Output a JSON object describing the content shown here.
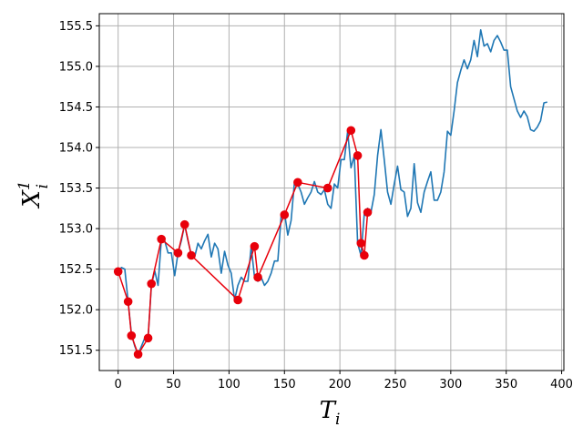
{
  "chart_data": {
    "type": "line",
    "title": "",
    "xlabel": {
      "base": "T",
      "sub": "i"
    },
    "ylabel": {
      "base": "X",
      "sub": "i",
      "sup": "1"
    },
    "xlim": [
      -17,
      402
    ],
    "ylim": [
      151.25,
      155.65
    ],
    "grid": true,
    "x_ticks": [
      0,
      50,
      100,
      150,
      200,
      250,
      300,
      350,
      400
    ],
    "x_tick_labels": [
      "0",
      "50",
      "100",
      "150",
      "200",
      "250",
      "300",
      "350",
      "400"
    ],
    "y_ticks": [
      151.5,
      152.0,
      152.5,
      153.0,
      153.5,
      154.0,
      154.5,
      155.0,
      155.5
    ],
    "y_tick_labels": [
      "151.5",
      "152.0",
      "152.5",
      "153.0",
      "153.5",
      "154.0",
      "154.5",
      "155.0",
      "155.5"
    ],
    "series": [
      {
        "style": "line",
        "color": "#1f77b4",
        "x": [
          0,
          3,
          6,
          9,
          12,
          15,
          18,
          21,
          24,
          27,
          30,
          33,
          36,
          39,
          42,
          45,
          48,
          51,
          54,
          57,
          60,
          63,
          66,
          69,
          72,
          75,
          78,
          81,
          84,
          87,
          90,
          93,
          96,
          99,
          102,
          105,
          108,
          111,
          114,
          117,
          120,
          123,
          126,
          129,
          132,
          135,
          138,
          141,
          144,
          147,
          150,
          153,
          156,
          159,
          162,
          165,
          168,
          171,
          174,
          177,
          180,
          183,
          186,
          189,
          192,
          195,
          198,
          201,
          204,
          207,
          210,
          213,
          216,
          219,
          222,
          225,
          228,
          231,
          234,
          237,
          240,
          243,
          246,
          249,
          252,
          255,
          258,
          261,
          264,
          267,
          270,
          273,
          276,
          279,
          282,
          285,
          288,
          291,
          294,
          297,
          300,
          303,
          306,
          309,
          312,
          315,
          318,
          321,
          324,
          327,
          330,
          333,
          336,
          339,
          342,
          345,
          348,
          351,
          354,
          357,
          360,
          363,
          366,
          369,
          372,
          375,
          378,
          381,
          384,
          387
        ],
        "y": [
          152.47,
          152.52,
          152.5,
          152.1,
          151.7,
          151.55,
          151.45,
          151.55,
          151.65,
          151.65,
          152.3,
          152.48,
          152.3,
          152.87,
          152.85,
          152.7,
          152.7,
          152.42,
          152.7,
          152.85,
          153.05,
          152.85,
          152.67,
          152.65,
          152.82,
          152.75,
          152.85,
          152.93,
          152.65,
          152.82,
          152.75,
          152.45,
          152.72,
          152.55,
          152.45,
          152.12,
          152.3,
          152.4,
          152.35,
          152.35,
          152.78,
          152.4,
          152.35,
          152.4,
          152.3,
          152.35,
          152.45,
          152.6,
          152.6,
          153.15,
          153.2,
          152.92,
          153.1,
          153.57,
          153.55,
          153.45,
          153.3,
          153.38,
          153.45,
          153.58,
          153.45,
          153.42,
          153.48,
          153.3,
          153.25,
          153.55,
          153.5,
          153.85,
          153.85,
          154.2,
          153.75,
          153.9,
          152.82,
          152.67,
          153.18,
          153.25,
          153.2,
          153.42,
          153.9,
          154.22,
          153.85,
          153.45,
          153.3,
          153.55,
          153.77,
          153.48,
          153.45,
          153.15,
          153.25,
          153.8,
          153.32,
          153.2,
          153.45,
          153.58,
          153.7,
          153.35,
          153.35,
          153.45,
          153.7,
          154.2,
          154.15,
          154.45,
          154.8,
          154.95,
          155.08,
          154.97,
          155.08,
          155.32,
          155.12,
          155.45,
          155.25,
          155.28,
          155.18,
          155.32,
          155.38,
          155.3,
          155.2,
          155.2,
          154.75,
          154.6,
          154.45,
          154.37,
          154.45,
          154.38,
          154.22,
          154.2,
          154.25,
          154.33,
          154.55,
          154.56
        ]
      },
      {
        "style": "line-markers",
        "color": "#e8000b",
        "x": [
          0,
          9,
          12,
          18,
          27,
          30,
          39,
          54,
          60,
          66,
          108,
          123,
          126,
          150,
          162,
          189,
          210,
          216,
          219,
          222,
          225
        ],
        "y": [
          152.47,
          152.1,
          151.68,
          151.45,
          151.65,
          152.32,
          152.87,
          152.7,
          153.05,
          152.67,
          152.12,
          152.78,
          152.4,
          153.17,
          153.57,
          153.5,
          154.21,
          153.9,
          152.82,
          152.67,
          153.2
        ]
      }
    ]
  }
}
